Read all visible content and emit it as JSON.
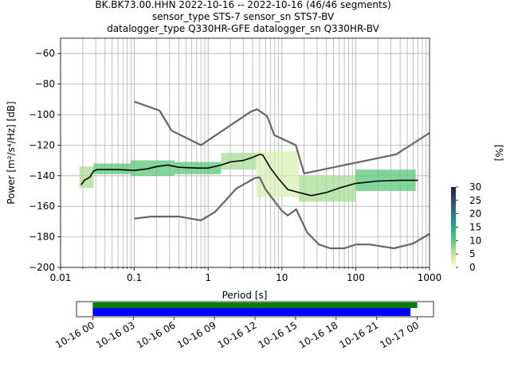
{
  "title": {
    "line1": "BK.BK73.00.HHN   2022-10-16 -- 2022-10-16  (46/46 segments)",
    "line2": "sensor_type STS-7 sensor_sn STS7-BV",
    "line3": "datalogger_type Q330HR-GFE datalogger_sn Q330HR-BV"
  },
  "chart_data": [
    {
      "type": "heatmap",
      "xlabel": "Period [s]",
      "ylabel_text": "Power [m²/s⁴/Hz] [dB]",
      "x_scale": "log",
      "xlim": [
        0.01,
        1000
      ],
      "ylim": [
        -200,
        -50
      ],
      "x_ticks": [
        {
          "value": 0.01,
          "label": "0.01"
        },
        {
          "value": 0.1,
          "label": "0.1"
        },
        {
          "value": 1,
          "label": "1"
        },
        {
          "value": 10,
          "label": "10"
        },
        {
          "value": 100,
          "label": "100"
        },
        {
          "value": 1000,
          "label": "1000"
        }
      ],
      "y_ticks": [
        {
          "value": -60,
          "label": "−60"
        },
        {
          "value": -80,
          "label": "−80"
        },
        {
          "value": -100,
          "label": "−100"
        },
        {
          "value": -120,
          "label": "−120"
        },
        {
          "value": -140,
          "label": "−140"
        },
        {
          "value": -160,
          "label": "−160"
        },
        {
          "value": -180,
          "label": "−180"
        },
        {
          "value": -200,
          "label": "−200"
        }
      ],
      "grid": true,
      "colorbar": {
        "label": "[%]",
        "range": [
          0,
          30
        ],
        "ticks": [
          {
            "value": 0,
            "label": "0"
          },
          {
            "value": 5,
            "label": "5"
          },
          {
            "value": 10,
            "label": "10"
          },
          {
            "value": 15,
            "label": "15"
          },
          {
            "value": 20,
            "label": "20"
          },
          {
            "value": 25,
            "label": "25"
          },
          {
            "value": 30,
            "label": "30"
          }
        ]
      },
      "noise_model_high": [
        [
          0.1,
          -91.5
        ],
        [
          0.22,
          -97.4
        ],
        [
          0.32,
          -110.5
        ],
        [
          0.8,
          -120
        ],
        [
          3.8,
          -98
        ],
        [
          4.6,
          -96.5
        ],
        [
          6.3,
          -101
        ],
        [
          7.9,
          -113.5
        ],
        [
          15.4,
          -120
        ],
        [
          20,
          -138.5
        ],
        [
          354.8,
          -126
        ],
        [
          1000,
          -112
        ]
      ],
      "noise_model_low": [
        [
          0.1,
          -168
        ],
        [
          0.17,
          -166.7
        ],
        [
          0.4,
          -166.7
        ],
        [
          0.8,
          -169.2
        ],
        [
          1.24,
          -163.7
        ],
        [
          2.4,
          -148.5
        ],
        [
          4.3,
          -141.5
        ],
        [
          5,
          -141.1
        ],
        [
          6,
          -149
        ],
        [
          10,
          -163
        ],
        [
          12,
          -166
        ],
        [
          15.6,
          -162
        ],
        [
          21.9,
          -177
        ],
        [
          31.6,
          -185
        ],
        [
          45,
          -187.5
        ],
        [
          70,
          -187.5
        ],
        [
          101,
          -185
        ],
        [
          154,
          -185
        ],
        [
          328,
          -187.5
        ],
        [
          600,
          -184.4
        ],
        [
          1000,
          -178
        ]
      ],
      "mean_curve": [
        [
          0.019,
          -146
        ],
        [
          0.021,
          -143
        ],
        [
          0.025,
          -141
        ],
        [
          0.028,
          -137
        ],
        [
          0.031,
          -136
        ],
        [
          0.04,
          -136
        ],
        [
          0.06,
          -136
        ],
        [
          0.1,
          -136.5
        ],
        [
          0.15,
          -135.5
        ],
        [
          0.2,
          -134
        ],
        [
          0.28,
          -133
        ],
        [
          0.4,
          -134.5
        ],
        [
          0.7,
          -135
        ],
        [
          1,
          -135
        ],
        [
          1.5,
          -133
        ],
        [
          2,
          -131
        ],
        [
          3,
          -130
        ],
        [
          4,
          -128
        ],
        [
          5,
          -126
        ],
        [
          5.5,
          -126.5
        ],
        [
          7,
          -135
        ],
        [
          9,
          -142
        ],
        [
          12,
          -149
        ],
        [
          17,
          -151
        ],
        [
          25,
          -153
        ],
        [
          40,
          -151
        ],
        [
          60,
          -148
        ],
        [
          100,
          -145
        ],
        [
          200,
          -143.5
        ],
        [
          400,
          -143
        ],
        [
          700,
          -143
        ]
      ],
      "density_band": [
        {
          "x_range": [
            0.018,
            0.028
          ],
          "y_range": [
            -148,
            -134
          ],
          "percent": 4
        },
        {
          "x_range": [
            0.028,
            0.09
          ],
          "y_range": [
            -139,
            -132
          ],
          "percent": 6
        },
        {
          "x_range": [
            0.09,
            0.35
          ],
          "y_range": [
            -140,
            -130
          ],
          "percent": 5
        },
        {
          "x_range": [
            0.35,
            1.5
          ],
          "y_range": [
            -139,
            -131
          ],
          "percent": 5
        },
        {
          "x_range": [
            1.5,
            4.5
          ],
          "y_range": [
            -136,
            -125
          ],
          "percent": 4
        },
        {
          "x_range": [
            4.5,
            17
          ],
          "y_range": [
            -154,
            -124
          ],
          "percent": 2
        },
        {
          "x_range": [
            17,
            100
          ],
          "y_range": [
            -157,
            -140
          ],
          "percent": 3
        },
        {
          "x_range": [
            100,
            650
          ],
          "y_range": [
            -150,
            -136
          ],
          "percent": 5
        }
      ]
    },
    {
      "type": "timeline",
      "x_ticks": [
        "10-16 00",
        "10-16 03",
        "10-16 06",
        "10-16 09",
        "10-16 12",
        "10-16 15",
        "10-16 18",
        "10-16 21",
        "10-17 00"
      ],
      "tick_hours": [
        0,
        3,
        6,
        9,
        12,
        15,
        18,
        21,
        24
      ],
      "xlim_hours": [
        -1.2,
        25.2
      ],
      "data_bar": {
        "start_hour": 0,
        "end_hour": 24.0,
        "color": "#008000"
      },
      "psd_bar": {
        "start_hour": 0,
        "end_hour": 23.5,
        "color": "#0000ff"
      }
    }
  ]
}
